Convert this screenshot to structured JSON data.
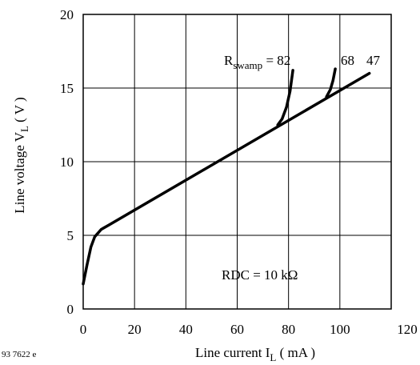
{
  "chart_data": {
    "type": "line",
    "xlabel": {
      "main": "Line current I",
      "sub": "L",
      "unit": " ( mA )"
    },
    "ylabel": {
      "main": "Line voltage V",
      "sub": "L",
      "unit": " ( V )"
    },
    "xlim": [
      0,
      120
    ],
    "ylim": [
      0,
      20
    ],
    "x_ticks": [
      0,
      20,
      40,
      60,
      80,
      100,
      120
    ],
    "y_ticks": [
      0,
      5,
      10,
      15,
      20
    ],
    "grid": true,
    "series": [
      {
        "label": "47",
        "points": [
          [
            0,
            1.7
          ],
          [
            1.5,
            3.0
          ],
          [
            3.0,
            4.2
          ],
          [
            4.5,
            4.9
          ],
          [
            7.0,
            5.4
          ],
          [
            10.0,
            5.7
          ],
          [
            111.5,
            16.0
          ]
        ]
      },
      {
        "label": "68",
        "points": [
          [
            94.8,
            14.4
          ],
          [
            96.3,
            14.9
          ],
          [
            97.3,
            15.5
          ],
          [
            98.2,
            16.3
          ]
        ]
      },
      {
        "label": "82",
        "points": [
          [
            75.8,
            12.5
          ],
          [
            77.5,
            12.9
          ],
          [
            79.2,
            13.7
          ],
          [
            80.6,
            14.8
          ],
          [
            81.7,
            16.2
          ]
        ]
      }
    ],
    "rswamp_label": {
      "prefix": "R",
      "sub": "swamp",
      "suffix": " = 82"
    },
    "curve_labels": [
      "68",
      "47"
    ],
    "annotation": "RDC = 10 kΩ",
    "figure_id": "93 7622 e"
  }
}
